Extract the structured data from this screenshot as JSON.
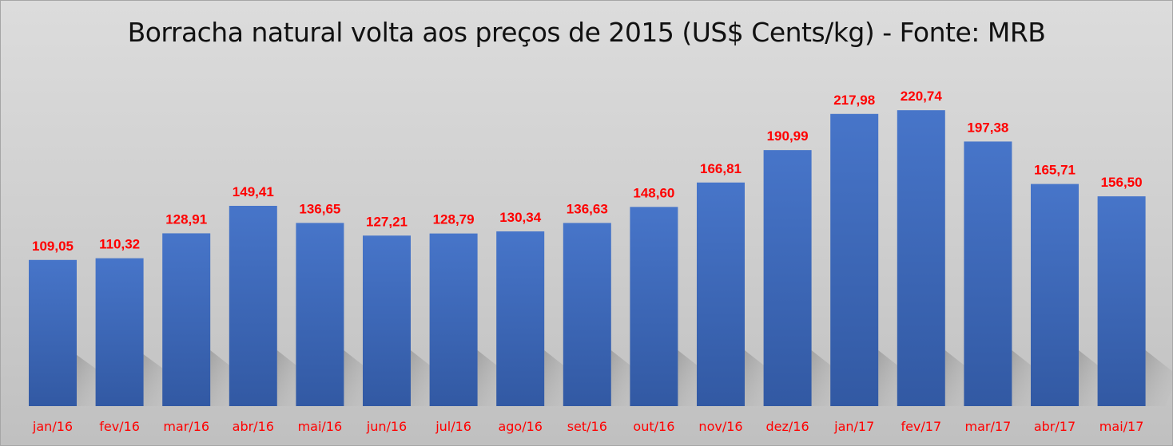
{
  "chart_data": {
    "type": "bar",
    "title": "Borracha natural volta aos preços de 2015 (US$ Cents/kg) - Fonte: MRB",
    "xlabel": "",
    "ylabel": "",
    "ylim": [
      0,
      250
    ],
    "grid": false,
    "legend": "none",
    "categories": [
      "jan/16",
      "fev/16",
      "mar/16",
      "abr/16",
      "mai/16",
      "jun/16",
      "jul/16",
      "ago/16",
      "set/16",
      "out/16",
      "nov/16",
      "dez/16",
      "jan/17",
      "fev/17",
      "mar/17",
      "abr/17",
      "mai/17"
    ],
    "values": [
      109.05,
      110.32,
      128.91,
      149.41,
      136.65,
      127.21,
      128.79,
      130.34,
      136.63,
      148.6,
      166.81,
      190.99,
      217.98,
      220.74,
      197.38,
      165.71,
      156.5
    ],
    "data_labels": [
      "109,05",
      "110,32",
      "128,91",
      "149,41",
      "136,65",
      "127,21",
      "128,79",
      "130,34",
      "136,63",
      "148,60",
      "166,81",
      "190,99",
      "217,98",
      "220,74",
      "197,38",
      "165,71",
      "156,50"
    ],
    "colors": {
      "bar_top": "#4775c9",
      "bar_bottom": "#3259a3",
      "label": "#ff0000"
    }
  }
}
